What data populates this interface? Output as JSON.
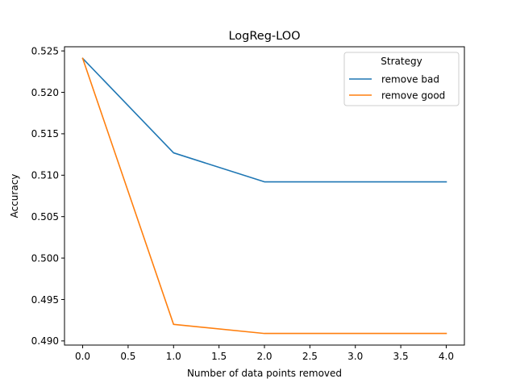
{
  "chart_data": {
    "type": "line",
    "title": "LogReg-LOO",
    "xlabel": "Number of data points removed",
    "ylabel": "Accuracy",
    "xlim": [
      -0.2,
      4.2
    ],
    "ylim": [
      0.4895,
      0.5255
    ],
    "x_ticks": [
      "0.0",
      "0.5",
      "1.0",
      "1.5",
      "2.0",
      "2.5",
      "3.0",
      "3.5",
      "4.0"
    ],
    "y_ticks": [
      "0.490",
      "0.495",
      "0.500",
      "0.505",
      "0.510",
      "0.515",
      "0.520",
      "0.525"
    ],
    "grid": false,
    "legend": {
      "title": "Strategy",
      "position": "top-right"
    },
    "series": [
      {
        "name": "remove bad",
        "color": "#1f77b4",
        "x": [
          0,
          1,
          2,
          3,
          4
        ],
        "y": [
          0.5241,
          0.5127,
          0.5092,
          0.5092,
          0.5092
        ]
      },
      {
        "name": "remove good",
        "color": "#ff7f0e",
        "x": [
          0,
          1,
          2,
          3,
          4
        ],
        "y": [
          0.5241,
          0.492,
          0.4909,
          0.4909,
          0.4909
        ]
      }
    ]
  }
}
